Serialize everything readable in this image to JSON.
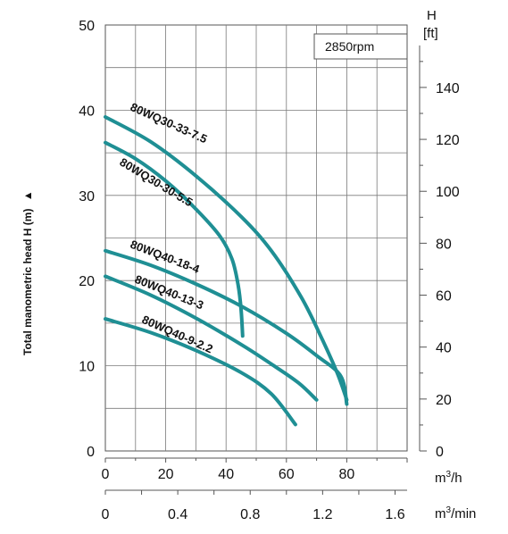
{
  "chart_data": {
    "type": "line",
    "title": "",
    "annotation": "2850rpm",
    "ylabel": "Total manometric head H (m)",
    "ylabel_marker": "▲",
    "ylim": [
      0,
      50
    ],
    "yticks": [
      "0",
      "10",
      "20",
      "30",
      "40",
      "50"
    ],
    "y2label": "H",
    "y2unit": "[ft]",
    "y2ticks": [
      "0",
      "20",
      "40",
      "60",
      "80",
      "100",
      "120",
      "140"
    ],
    "y2_values": [
      0,
      20,
      40,
      60,
      80,
      100,
      120,
      140
    ],
    "xlim": [
      0,
      100
    ],
    "xunit": "m³/h",
    "xticks": [
      "0",
      "20",
      "40",
      "60",
      "80"
    ],
    "x2unit": "m³/min",
    "x2ticks": [
      "0",
      "0.4",
      "0.8",
      "1.2",
      "1.6"
    ],
    "x2_values": [
      0,
      0.4,
      0.8,
      1.2,
      1.6
    ],
    "grid": true,
    "line_color": "#1f8f94",
    "series": [
      {
        "name": "80WQ30-33-7.5",
        "x": [
          0,
          15,
          30,
          45,
          55,
          65,
          72,
          77,
          80
        ],
        "y": [
          39.2,
          36.3,
          32.3,
          27.5,
          23.5,
          18,
          13,
          9,
          6
        ]
      },
      {
        "name": "80WQ30-30-5.5",
        "x": [
          0,
          10,
          20,
          30,
          38,
          42,
          44,
          45,
          45.5
        ],
        "y": [
          36.2,
          34.3,
          31.7,
          28.4,
          25.2,
          22.5,
          19.5,
          16.5,
          13.5
        ]
      },
      {
        "name": "80WQ40-18-4",
        "x": [
          0,
          15,
          30,
          45,
          60,
          70,
          78,
          80
        ],
        "y": [
          23.5,
          21.8,
          19.6,
          17,
          13.8,
          11.2,
          8.8,
          5.5
        ]
      },
      {
        "name": "80WQ40-13-3",
        "x": [
          0,
          15,
          30,
          45,
          55,
          64,
          70
        ],
        "y": [
          20.5,
          18.3,
          15.6,
          12.5,
          10.2,
          8,
          6
        ]
      },
      {
        "name": "80WQ40-9-2.2",
        "x": [
          0,
          15,
          30,
          45,
          55,
          63
        ],
        "y": [
          15.5,
          13.9,
          11.8,
          9.2,
          6.7,
          3.1
        ]
      }
    ]
  }
}
